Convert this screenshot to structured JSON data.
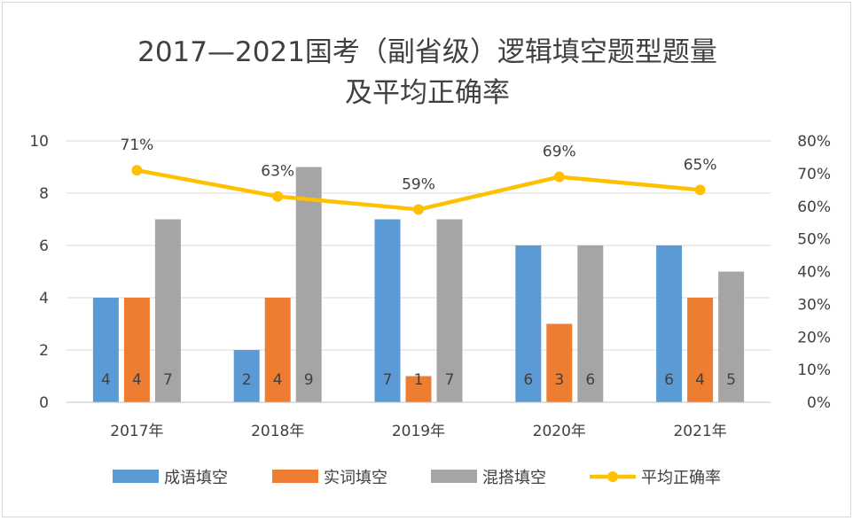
{
  "chart_data": {
    "type": "bar",
    "title": [
      "2017—2021国考（副省级）逻辑填空题型题量",
      "及平均正确率"
    ],
    "categories": [
      "2017年",
      "2018年",
      "2019年",
      "2020年",
      "2021年"
    ],
    "series": [
      {
        "name": "成语填空",
        "values": [
          4,
          2,
          7,
          6,
          6
        ],
        "color": "#5b9bd5",
        "axis": "left",
        "kind": "bar"
      },
      {
        "name": "实词填空",
        "values": [
          4,
          4,
          1,
          3,
          4
        ],
        "color": "#ed7d31",
        "axis": "left",
        "kind": "bar"
      },
      {
        "name": "混搭填空",
        "values": [
          7,
          9,
          7,
          6,
          5
        ],
        "color": "#a5a5a5",
        "axis": "left",
        "kind": "bar"
      },
      {
        "name": "平均正确率",
        "values": [
          71,
          63,
          59,
          69,
          65
        ],
        "color": "#ffc000",
        "axis": "right",
        "kind": "line"
      }
    ],
    "ylim_left": [
      0,
      10
    ],
    "yticks_left": [
      "0",
      "2",
      "4",
      "6",
      "8",
      "10"
    ],
    "ylim_right": [
      0,
      80
    ],
    "yticks_right": [
      "0%",
      "10%",
      "20%",
      "30%",
      "40%",
      "50%",
      "60%",
      "70%",
      "80%"
    ],
    "line_labels": [
      "71%",
      "63%",
      "59%",
      "69%",
      "65%"
    ],
    "grid": true,
    "legend_position": "bottom"
  }
}
